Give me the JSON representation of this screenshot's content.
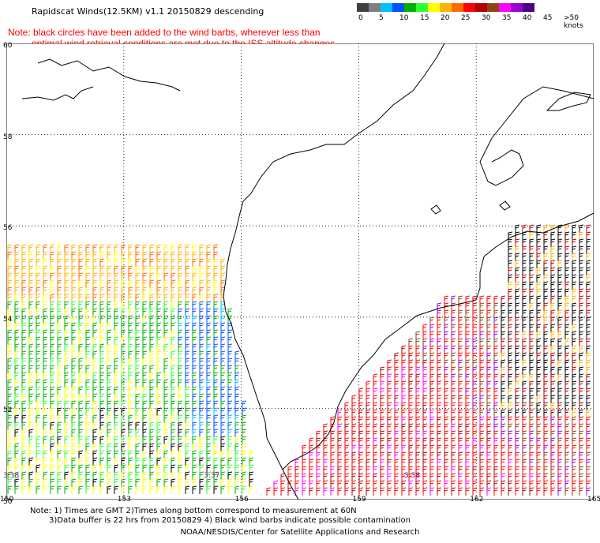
{
  "title": "Rapidscat Winds(12.5KM) v1.1 20150829 descending",
  "note": {
    "line1": "Note: black circles have been added to the wind barbs, wherever less than",
    "line2": "optimal wind retrieval conditions are met due to the ISS altitude changes."
  },
  "colorbar": {
    "labels": [
      "0",
      "5",
      "10",
      "15",
      "20",
      "25",
      "30",
      "35",
      "40",
      "45",
      ">50 knots"
    ],
    "colors": [
      "#404040",
      "#7f7f7f",
      "#00bfff",
      "#0050ff",
      "#00b000",
      "#30ff30",
      "#ffff00",
      "#ffb400",
      "#ff6a00",
      "#ff0000",
      "#b00000",
      "#8b4513",
      "#ff00ff",
      "#9900cc",
      "#4b0082"
    ]
  },
  "map": {
    "lat_labels": [
      "60",
      "58",
      "56",
      "54",
      "52",
      "50"
    ],
    "lon_labels": [
      "150",
      "153",
      "156",
      "159",
      "162",
      "165"
    ],
    "time_labels": [
      "3:38",
      "3:37",
      "3:38"
    ]
  },
  "footer": {
    "line1": "Note: 1) Times are GMT 2)Times along bottom correspond to measurement at 60N",
    "line2": "3)Data buffer is 22 hrs from 20150829 4) Black wind barbs indicate possible contamination",
    "line3": "NOAA/NESDIS/Center for Satellite Applications and Research"
  }
}
